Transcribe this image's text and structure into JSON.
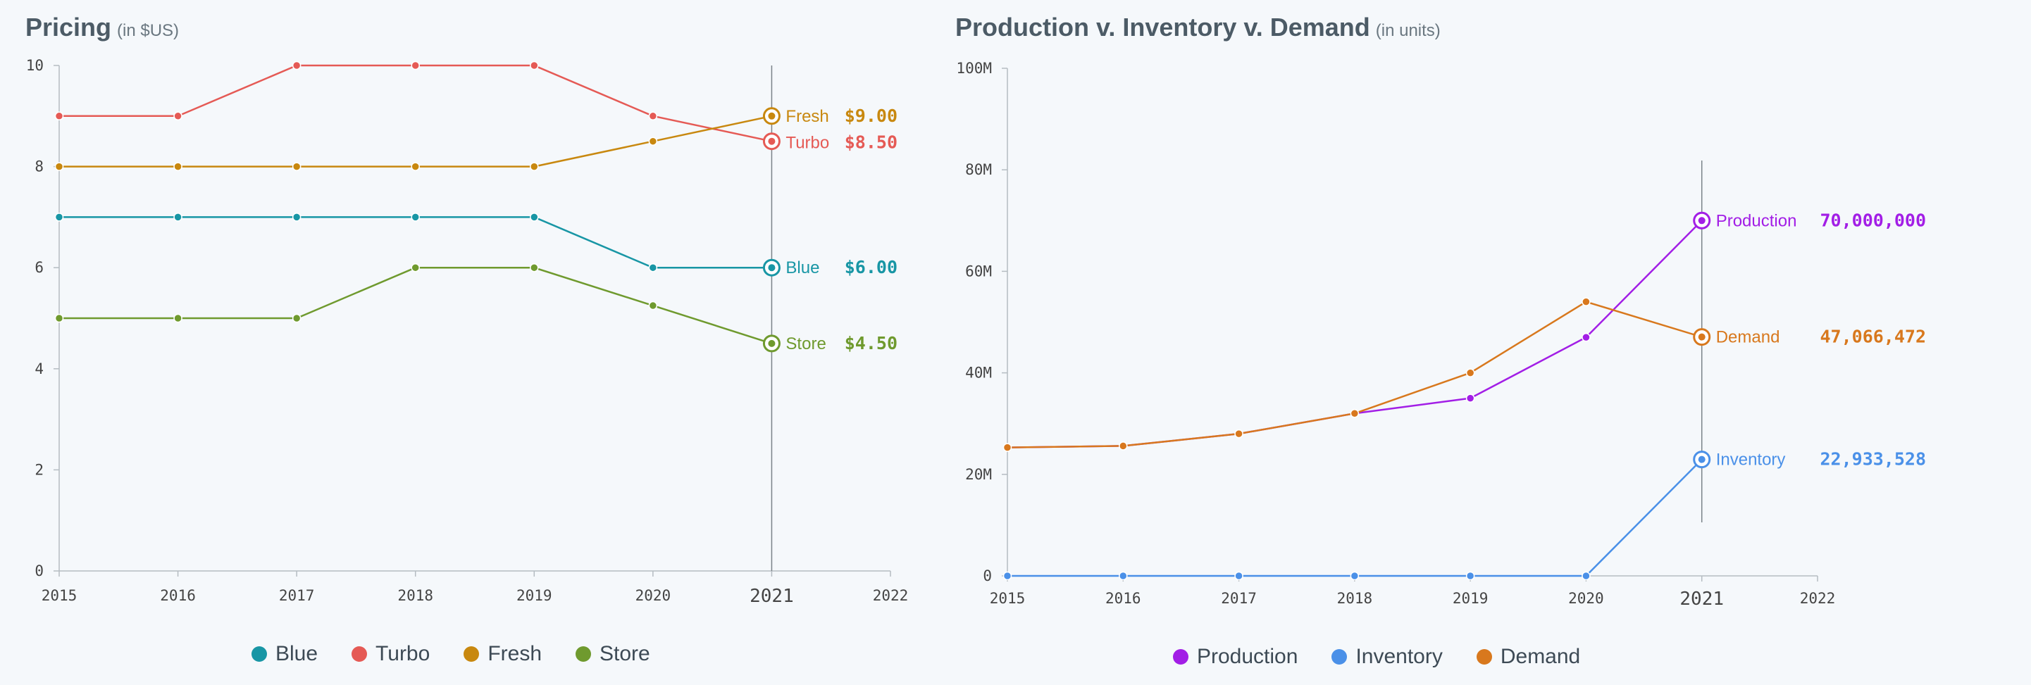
{
  "charts": [
    {
      "title": "Pricing",
      "subtitle": "(in $US)",
      "legend": [
        "Blue",
        "Turbo",
        "Fresh",
        "Store"
      ]
    },
    {
      "title": "Production v. Inventory v. Demand",
      "subtitle": "(in units)",
      "legend": [
        "Production",
        "Inventory",
        "Demand"
      ]
    }
  ],
  "chart_data": [
    {
      "type": "line",
      "title": "Pricing",
      "subtitle": "(in $US)",
      "x": [
        2015,
        2016,
        2017,
        2018,
        2019,
        2020,
        2021
      ],
      "xlim": [
        2015,
        2022
      ],
      "xticks": [
        "2015",
        "2016",
        "2017",
        "2018",
        "2019",
        "2020",
        "2021",
        "2022"
      ],
      "ylim": [
        0,
        10
      ],
      "yticks": [
        "0",
        "2",
        "4",
        "6",
        "8",
        "10"
      ],
      "highlight_x": "2021",
      "grid": false,
      "legend_position": "bottom",
      "series": [
        {
          "name": "Blue",
          "color": "#1896a5",
          "values": [
            7,
            7,
            7,
            7,
            7,
            6,
            6
          ],
          "callout": "$6.00"
        },
        {
          "name": "Turbo",
          "color": "#e55a55",
          "values": [
            9,
            9,
            10,
            10,
            10,
            9,
            8.5
          ],
          "callout": "$8.50"
        },
        {
          "name": "Fresh",
          "color": "#c8880f",
          "values": [
            8,
            8,
            8,
            8,
            8,
            8.5,
            9
          ],
          "callout": "$9.00"
        },
        {
          "name": "Store",
          "color": "#6f9a2e",
          "values": [
            5,
            5,
            5,
            6,
            6,
            5.25,
            4.5
          ],
          "callout": "$4.50"
        }
      ]
    },
    {
      "type": "line",
      "title": "Production v. Inventory v. Demand",
      "subtitle": "(in units)",
      "x": [
        2015,
        2016,
        2017,
        2018,
        2019,
        2020,
        2021
      ],
      "xlim": [
        2015,
        2022
      ],
      "xticks": [
        "2015",
        "2016",
        "2017",
        "2018",
        "2019",
        "2020",
        "2021",
        "2022"
      ],
      "ylim": [
        0,
        100000000
      ],
      "yticks": [
        "0",
        "20M",
        "40M",
        "60M",
        "80M",
        "100M"
      ],
      "highlight_x": "2021",
      "grid": false,
      "legend_position": "bottom",
      "series": [
        {
          "name": "Production",
          "color": "#a21ee6",
          "values": [
            25300000,
            25600000,
            28000000,
            32000000,
            35000000,
            47000000,
            70000000
          ],
          "callout": "70,000,000"
        },
        {
          "name": "Inventory",
          "color": "#4a90e8",
          "values": [
            0,
            0,
            0,
            0,
            0,
            0,
            22933528
          ],
          "callout": "22,933,528"
        },
        {
          "name": "Demand",
          "color": "#d8781d",
          "values": [
            25300000,
            25600000,
            28000000,
            32000000,
            40000000,
            54000000,
            47066472
          ],
          "callout": "47,066,472"
        }
      ]
    }
  ]
}
